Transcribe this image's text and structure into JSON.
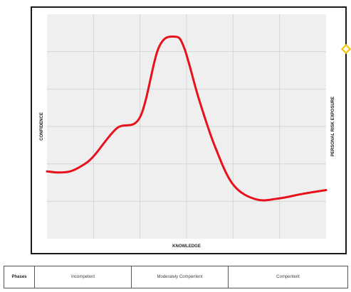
{
  "chart_data": {
    "type": "line",
    "title": "",
    "xlabel": "KNOWLEDGE",
    "ylabel": "CONFIDENCE",
    "y2label": "PERSONAL RISK EXPOSURE",
    "grid": true,
    "xlim": [
      0,
      6
    ],
    "ylim": [
      0,
      6
    ],
    "series": [
      {
        "color": "#e8111b",
        "x": [
          0,
          0.25,
          0.5,
          0.75,
          1.0,
          1.5,
          2.0,
          2.4,
          2.75,
          2.95,
          3.25,
          3.6,
          4.0,
          4.5,
          5.0,
          5.5,
          6.0
        ],
        "y": [
          1.8,
          1.77,
          1.8,
          1.95,
          2.2,
          2.95,
          3.25,
          5.1,
          5.4,
          5.1,
          3.8,
          2.5,
          1.45,
          1.05,
          1.08,
          1.2,
          1.3
        ]
      }
    ]
  },
  "phases_table": {
    "header": "Phases",
    "cells": [
      "Incompetent",
      "Moderately Compentent",
      "Compentent"
    ]
  }
}
